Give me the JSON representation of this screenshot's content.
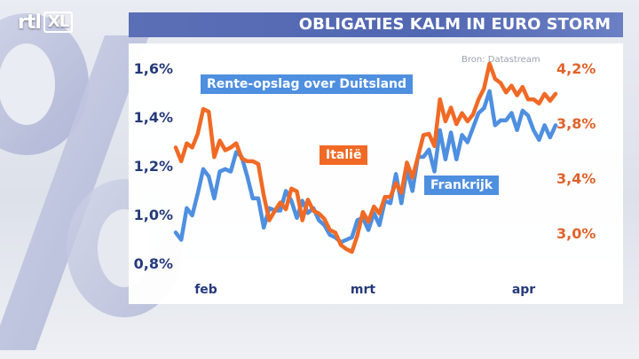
{
  "logo": {
    "text_left": "rtl",
    "text_box": "XL"
  },
  "title": "OBLIGATIES KALM IN EURO STORM",
  "source": "Bron: Datastream",
  "colors": {
    "blue": "#4e8fe0",
    "orange": "#f06a25",
    "axis_left": "#253a7a",
    "axis_right": "#e0622a",
    "title_bar": "#5167b2"
  },
  "chart_data": {
    "type": "line",
    "title": "OBLIGATIES KALM IN EURO STORM",
    "subtitle": "Rente-opslag over Duitsland",
    "x_ticks": [
      "feb",
      "mrt",
      "apr"
    ],
    "y_left": {
      "ticks": [
        "0,8%",
        "1,0%",
        "1,2%",
        "1,4%",
        "1,6%"
      ],
      "range": [
        0.8,
        1.6
      ],
      "unit": "%"
    },
    "y_right": {
      "ticks": [
        "3,0%",
        "3,4%",
        "3,8%",
        "4,2%"
      ],
      "range": [
        2.8,
        4.2
      ],
      "unit": "%"
    },
    "grid": false,
    "series": [
      {
        "name": "Italië",
        "axis": "right",
        "color": "#f06a25",
        "values": [
          3.63,
          3.53,
          3.66,
          3.63,
          3.73,
          3.91,
          3.89,
          3.56,
          3.68,
          3.61,
          3.63,
          3.66,
          3.55,
          3.53,
          3.53,
          3.51,
          3.28,
          3.1,
          3.17,
          3.23,
          3.18,
          3.33,
          3.31,
          3.1,
          3.25,
          3.17,
          3.15,
          3.11,
          3.03,
          3.01,
          2.92,
          2.89,
          2.87,
          2.99,
          3.16,
          3.09,
          3.2,
          3.15,
          3.27,
          3.27,
          3.37,
          3.3,
          3.52,
          3.41,
          3.56,
          3.72,
          3.73,
          3.64,
          3.98,
          3.82,
          3.92,
          3.8,
          3.88,
          3.82,
          3.87,
          3.98,
          4.06,
          4.24,
          4.13,
          4.1,
          4.03,
          4.08,
          4.01,
          4.07,
          3.98,
          3.98,
          3.95,
          4.02,
          3.97,
          4.02
        ]
      },
      {
        "name": "Frankrijk",
        "axis": "left",
        "color": "#4e8fe0",
        "values": [
          0.93,
          0.9,
          1.03,
          1.0,
          1.09,
          1.19,
          1.16,
          1.07,
          1.18,
          1.19,
          1.18,
          1.26,
          1.24,
          1.16,
          1.07,
          1.07,
          0.95,
          1.03,
          1.02,
          1.02,
          1.1,
          1.06,
          0.99,
          1.06,
          1.01,
          1.03,
          0.98,
          0.96,
          0.92,
          0.91,
          0.89,
          0.9,
          0.91,
          0.98,
          0.99,
          0.94,
          1.01,
          0.96,
          1.06,
          1.05,
          1.17,
          1.05,
          1.19,
          1.1,
          1.24,
          1.24,
          1.27,
          1.18,
          1.35,
          1.23,
          1.34,
          1.23,
          1.33,
          1.3,
          1.36,
          1.42,
          1.44,
          1.51,
          1.37,
          1.39,
          1.39,
          1.42,
          1.35,
          1.43,
          1.41,
          1.35,
          1.31,
          1.37,
          1.32,
          1.37
        ]
      }
    ],
    "annotations": [
      {
        "text": "Rente-opslag over Duitsland",
        "color": "#4e8fe0"
      },
      {
        "text": "Italië",
        "color": "#f06a25"
      },
      {
        "text": "Frankrijk",
        "color": "#4e8fe0"
      }
    ]
  }
}
